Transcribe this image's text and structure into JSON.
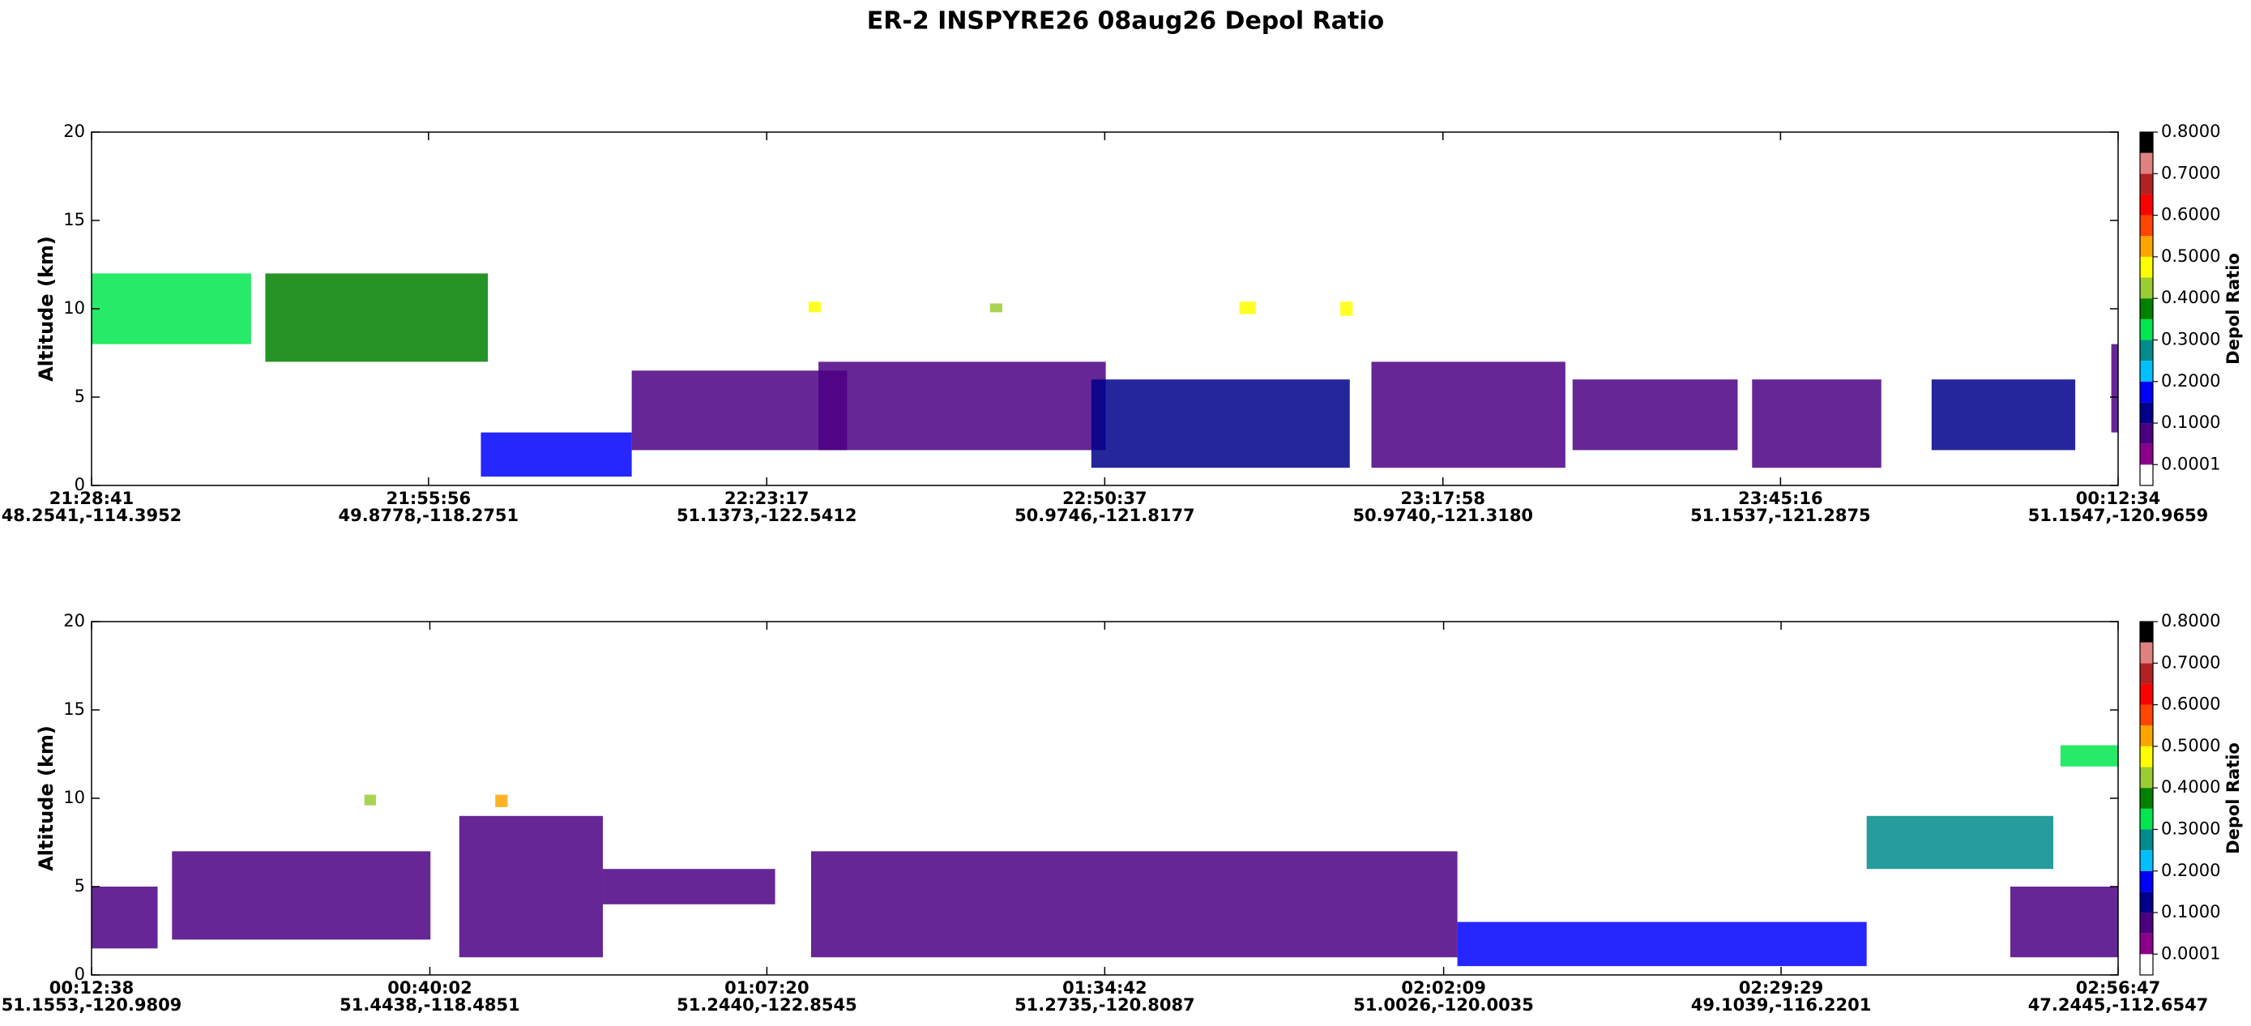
{
  "title": "ER-2  INSPYRE26  08aug26  Depol Ratio",
  "chart_data": [
    {
      "type": "curtain",
      "ylabel": "Altitude (km)",
      "xlim": [
        77321,
        87154
      ],
      "xticks": [
        {
          "value": 77321,
          "label": "21:28:41"
        },
        {
          "value": 78956,
          "label": "21:55:56"
        },
        {
          "value": 80597,
          "label": "22:23:17"
        },
        {
          "value": 82237,
          "label": "22:50:37"
        },
        {
          "value": 83878,
          "label": "23:17:58"
        },
        {
          "value": 85516,
          "label": "23:45:16"
        },
        {
          "value": 87154,
          "label": "00:12:34"
        }
      ],
      "xtick_sublabels": [
        "48.2541,-114.3952",
        "49.8778,-118.2751",
        "51.1373,-122.5412",
        "50.9746,-121.8177",
        "50.9740,-121.3180",
        "51.1537,-121.2875",
        "51.1547,-120.9659"
      ],
      "ylim": [
        0,
        20
      ],
      "yticks": [
        0,
        5,
        10,
        15,
        20
      ],
      "layers": [
        {
          "t0": 77321,
          "t1": 78095,
          "base": 8,
          "top": 12,
          "depol": 0.35
        },
        {
          "t0": 78164,
          "t1": 79244,
          "base": 7,
          "top": 12,
          "depol": 0.38
        },
        {
          "t0": 79210,
          "t1": 79942,
          "base": 0.5,
          "top": 3,
          "depol": 0.15
        },
        {
          "t0": 79942,
          "t1": 80987,
          "base": 2,
          "top": 6.5,
          "depol": 0.05
        },
        {
          "t0": 80848,
          "t1": 82242,
          "base": 2,
          "top": 7,
          "depol": 0.05
        },
        {
          "t0": 82172,
          "t1": 83426,
          "base": 1,
          "top": 6,
          "depol": 0.1
        },
        {
          "t0": 83531,
          "t1": 84472,
          "base": 1,
          "top": 7,
          "depol": 0.05
        },
        {
          "t0": 84507,
          "t1": 85308,
          "base": 2,
          "top": 6,
          "depol": 0.08
        },
        {
          "t0": 85378,
          "t1": 86005,
          "base": 1,
          "top": 6,
          "depol": 0.05
        },
        {
          "t0": 86249,
          "t1": 86946,
          "base": 2,
          "top": 6,
          "depol": 0.1
        },
        {
          "t0": 87121,
          "t1": 87154,
          "base": 3,
          "top": 8,
          "depol": 0.05
        },
        {
          "t0": 80800,
          "t1": 80860,
          "base": 9.8,
          "top": 10.4,
          "depol": 0.45
        },
        {
          "t0": 81680,
          "t1": 81740,
          "base": 9.8,
          "top": 10.3,
          "depol": 0.4
        },
        {
          "t0": 82890,
          "t1": 82970,
          "base": 9.7,
          "top": 10.4,
          "depol": 0.45
        },
        {
          "t0": 83380,
          "t1": 83440,
          "base": 9.6,
          "top": 10.4,
          "depol": 0.45
        }
      ],
      "colorbar": {
        "label": "Depol Ratio",
        "lim": [
          -0.05,
          0.8
        ],
        "colors": [
          "#ffffff",
          "#8b008b",
          "#4b0082",
          "#00008b",
          "#0000ff",
          "#00bfff",
          "#008b8b",
          "#00e64d",
          "#008000",
          "#9acd32",
          "#ffff00",
          "#ffa500",
          "#ff4500",
          "#ff0000",
          "#b22222",
          "#e08080",
          "#000000"
        ],
        "ticks": [
          {
            "value": 0.0001,
            "label": "0.0001"
          },
          {
            "value": 0.1,
            "label": "0.1000"
          },
          {
            "value": 0.2,
            "label": "0.2000"
          },
          {
            "value": 0.3,
            "label": "0.3000"
          },
          {
            "value": 0.4,
            "label": "0.4000"
          },
          {
            "value": 0.5,
            "label": "0.5000"
          },
          {
            "value": 0.6,
            "label": "0.6000"
          },
          {
            "value": 0.7,
            "label": "0.7000"
          },
          {
            "value": 0.8,
            "label": "0.8000"
          }
        ]
      }
    },
    {
      "type": "curtain",
      "ylabel": "Altitude (km)",
      "xlim": [
        758,
        10607
      ],
      "xticks": [
        {
          "value": 758,
          "label": "00:12:38"
        },
        {
          "value": 2402,
          "label": "00:40:02"
        },
        {
          "value": 4040,
          "label": "01:07:20"
        },
        {
          "value": 5682,
          "label": "01:34:42"
        },
        {
          "value": 7329,
          "label": "02:02:09"
        },
        {
          "value": 8969,
          "label": "02:29:29"
        },
        {
          "value": 10607,
          "label": "02:56:47"
        }
      ],
      "xtick_sublabels": [
        "51.1553,-120.9809",
        "51.4438,-118.4851",
        "51.2440,-122.8545",
        "51.2735,-120.8087",
        "51.0026,-120.0035",
        "49.1039,-116.2201",
        "47.2445,-112.6547"
      ],
      "ylim": [
        0,
        20
      ],
      "yticks": [
        0,
        5,
        10,
        15,
        20
      ],
      "layers": [
        {
          "t0": 758,
          "t1": 1079,
          "base": 1.5,
          "top": 5,
          "depol": 0.05
        },
        {
          "t0": 1149,
          "t1": 2405,
          "base": 2,
          "top": 7,
          "depol": 0.05
        },
        {
          "t0": 2545,
          "t1": 3243,
          "base": 1,
          "top": 9,
          "depol": 0.05
        },
        {
          "t0": 3243,
          "t1": 4080,
          "base": 4,
          "top": 6,
          "depol": 0.05
        },
        {
          "t0": 4255,
          "t1": 7396,
          "base": 1,
          "top": 7,
          "depol": 0.05
        },
        {
          "t0": 7396,
          "t1": 9385,
          "base": 0.5,
          "top": 3,
          "depol": 0.15
        },
        {
          "t0": 9385,
          "t1": 10292,
          "base": 6,
          "top": 9,
          "depol": 0.3
        },
        {
          "t0": 10083,
          "t1": 10607,
          "base": 1,
          "top": 5,
          "depol": 0.05
        },
        {
          "t0": 10327,
          "t1": 10607,
          "base": 11.8,
          "top": 13,
          "depol": 0.35
        },
        {
          "t0": 2084,
          "t1": 2140,
          "base": 9.6,
          "top": 10.2,
          "depol": 0.4
        },
        {
          "t0": 2720,
          "t1": 2780,
          "base": 9.5,
          "top": 10.2,
          "depol": 0.5
        }
      ],
      "colorbar": {
        "label": "Depol Ratio",
        "lim": [
          -0.05,
          0.8
        ],
        "colors": [
          "#ffffff",
          "#8b008b",
          "#4b0082",
          "#00008b",
          "#0000ff",
          "#00bfff",
          "#008b8b",
          "#00e64d",
          "#008000",
          "#9acd32",
          "#ffff00",
          "#ffa500",
          "#ff4500",
          "#ff0000",
          "#b22222",
          "#e08080",
          "#000000"
        ],
        "ticks": [
          {
            "value": 0.0001,
            "label": "0.0001"
          },
          {
            "value": 0.1,
            "label": "0.1000"
          },
          {
            "value": 0.2,
            "label": "0.2000"
          },
          {
            "value": 0.3,
            "label": "0.3000"
          },
          {
            "value": 0.4,
            "label": "0.4000"
          },
          {
            "value": 0.5,
            "label": "0.5000"
          },
          {
            "value": 0.6,
            "label": "0.6000"
          },
          {
            "value": 0.7,
            "label": "0.7000"
          },
          {
            "value": 0.8,
            "label": "0.8000"
          }
        ]
      }
    }
  ]
}
